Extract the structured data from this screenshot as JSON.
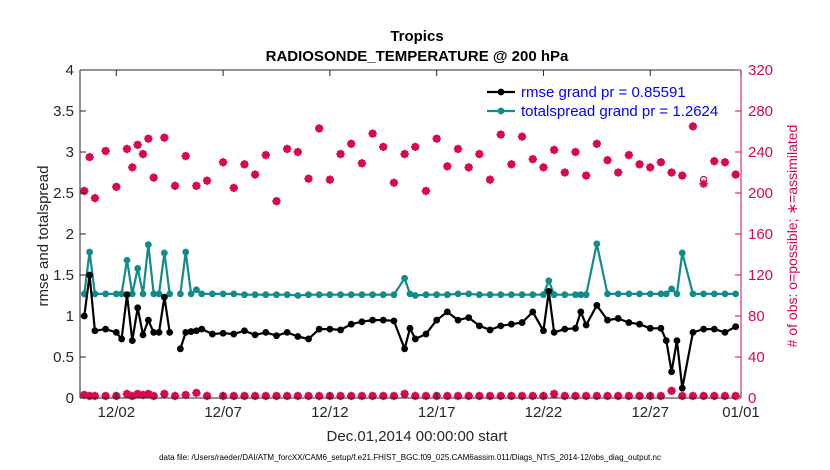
{
  "chart_data": {
    "type": "line",
    "title": "Tropics",
    "subtitle": "RADIOSONDE_TEMPERATURE @ 200 hPa",
    "xlabel": "Dec.01,2014 00:00:00 start",
    "ylabel": "rmse and totalspread",
    "ylabel_right": "# of obs: o=possible; ∗=assimilated",
    "footnote": "data file: /Users/raeder/DAI/ATM_forcXX/CAM6_setup/f.e21.FHIST_BGC.f09_025.CAM6assim.011/Diags_NTrS_2014-12/obs_diag_output.nc",
    "xlim": [
      0.3,
      31.25
    ],
    "ylim": [
      0,
      4
    ],
    "ylim_right": [
      0,
      320
    ],
    "x_ticks": [
      2,
      7,
      12,
      17,
      22,
      27,
      32
    ],
    "x_tick_labels": [
      "12/02",
      "12/07",
      "12/12",
      "12/17",
      "12/22",
      "12/27",
      "01/01"
    ],
    "y_ticks": [
      "0",
      "0.5",
      "1",
      "1.5",
      "2",
      "2.5",
      "3",
      "3.5",
      "4"
    ],
    "y_right_ticks": [
      "0",
      "40",
      "80",
      "120",
      "160",
      "200",
      "240",
      "280",
      "320"
    ],
    "legend_position": "top-right",
    "legend": [
      "rmse grand pr = 0.85591",
      "totalspread grand pr = 1.2624"
    ],
    "colors": {
      "rmse": "#000000",
      "spread": "#118b8b",
      "obs": "#d6084f",
      "axis": "#262626",
      "legend_text": "#0000ff"
    },
    "series": [
      {
        "name": "rmse",
        "x": [
          0.5,
          0.75,
          1,
          1.5,
          2,
          2.25,
          2.5,
          2.75,
          3,
          3.25,
          3.5,
          3.75,
          4,
          4.25,
          4.5,
          4.75,
          5,
          5.25,
          5.5,
          5.75,
          6,
          6.5,
          7,
          7.5,
          8,
          8.5,
          9,
          9.5,
          10,
          10.5,
          11,
          11.5,
          12,
          12.5,
          13,
          13.5,
          14,
          14.5,
          15,
          15.5,
          15.75,
          16,
          16.5,
          17,
          17.5,
          18,
          18.5,
          19,
          19.5,
          20,
          20.5,
          21,
          21.5,
          22,
          22.25,
          22.5,
          23,
          23.5,
          23.75,
          24,
          24.5,
          25,
          25.5,
          26,
          26.5,
          27,
          27.5,
          27.75,
          28,
          28.25,
          28.5,
          29,
          29.5,
          30,
          30.5,
          31
        ],
        "values": [
          1.0,
          1.5,
          0.82,
          0.84,
          0.8,
          0.72,
          1.26,
          0.7,
          1.1,
          0.77,
          0.95,
          0.8,
          0.8,
          1.23,
          0.8,
          null,
          0.6,
          0.8,
          0.81,
          0.82,
          0.84,
          0.78,
          0.79,
          0.78,
          0.82,
          0.77,
          0.8,
          0.76,
          0.8,
          0.75,
          0.72,
          0.84,
          0.84,
          0.83,
          0.9,
          0.93,
          0.95,
          0.95,
          0.94,
          0.6,
          0.85,
          0.72,
          0.78,
          0.95,
          1.05,
          0.95,
          0.98,
          0.88,
          0.83,
          0.88,
          0.9,
          0.92,
          1.05,
          0.82,
          1.3,
          0.8,
          0.84,
          0.85,
          1.05,
          0.89,
          1.13,
          0.95,
          0.97,
          0.92,
          0.9,
          0.85,
          0.85,
          0.7,
          0.32,
          0.7,
          0.12,
          0.8,
          0.84,
          0.84,
          0.8,
          0.87
        ]
      },
      {
        "name": "totalspread",
        "x": [
          0.5,
          0.75,
          1,
          1.5,
          2,
          2.25,
          2.5,
          2.75,
          3,
          3.25,
          3.5,
          3.75,
          4,
          4.25,
          4.5,
          4.75,
          5,
          5.25,
          5.5,
          5.75,
          6,
          6.5,
          7,
          7.5,
          8,
          8.5,
          9,
          9.5,
          10,
          10.5,
          11,
          11.5,
          12,
          12.5,
          13,
          13.5,
          14,
          14.5,
          15,
          15.5,
          15.75,
          16,
          16.5,
          17,
          17.5,
          18,
          18.5,
          19,
          19.5,
          20,
          20.5,
          21,
          21.5,
          22,
          22.25,
          22.5,
          23,
          23.5,
          23.75,
          24,
          24.5,
          25,
          25.5,
          26,
          26.5,
          27,
          27.5,
          27.75,
          28,
          28.25,
          28.5,
          29,
          29.5,
          30,
          30.5,
          31
        ],
        "values": [
          1.27,
          1.78,
          1.27,
          1.27,
          1.27,
          1.27,
          1.68,
          1.27,
          1.58,
          1.27,
          1.87,
          1.27,
          1.27,
          1.77,
          1.27,
          null,
          1.27,
          1.78,
          1.27,
          1.32,
          1.27,
          1.27,
          1.27,
          1.27,
          1.26,
          1.26,
          1.26,
          1.26,
          1.26,
          1.25,
          1.26,
          1.26,
          1.26,
          1.26,
          1.26,
          1.26,
          1.26,
          1.26,
          1.26,
          1.46,
          1.27,
          1.25,
          1.26,
          1.26,
          1.26,
          1.27,
          1.27,
          1.26,
          1.26,
          1.26,
          1.26,
          1.26,
          1.26,
          1.26,
          1.43,
          1.26,
          1.26,
          1.26,
          1.26,
          1.26,
          1.88,
          1.27,
          1.27,
          1.27,
          1.27,
          1.27,
          1.27,
          1.27,
          1.33,
          1.27,
          1.77,
          1.27,
          1.27,
          1.27,
          1.27,
          1.27
        ]
      },
      {
        "name": "obs_possible",
        "axis": "right",
        "x": [
          0.5,
          0.75,
          1,
          1.5,
          2,
          2.5,
          2.75,
          3,
          3.25,
          3.5,
          3.75,
          4.25,
          4.75,
          5.25,
          5.75,
          6.25,
          7,
          7.5,
          8,
          8.5,
          9,
          9.5,
          10,
          10.5,
          11,
          11.5,
          12,
          12.5,
          13,
          13.5,
          14,
          14.5,
          15,
          15.5,
          16,
          16.5,
          17,
          17.5,
          18,
          18.5,
          19,
          19.5,
          20,
          20.5,
          21,
          21.5,
          22,
          22.5,
          23,
          23.5,
          24,
          24.5,
          25,
          25.5,
          26,
          26.5,
          27,
          27.5,
          28,
          28.5,
          29,
          29.5,
          30,
          30.5,
          31
        ],
        "values": [
          202,
          235,
          195,
          241,
          206,
          243,
          225,
          247,
          238,
          253,
          215,
          254,
          207,
          236,
          207,
          212,
          230,
          205,
          228,
          218,
          237,
          192,
          243,
          240,
          214,
          263,
          213,
          238,
          248,
          229,
          258,
          245,
          210,
          238,
          245,
          202,
          253,
          226,
          243,
          225,
          238,
          213,
          257,
          228,
          255,
          233,
          225,
          242,
          220,
          240,
          217,
          248,
          232,
          220,
          237,
          228,
          225,
          230,
          220,
          217,
          265,
          213,
          231,
          230,
          218
        ],
        "assimilated_offset": [
          0,
          0,
          0,
          0,
          0,
          0,
          0,
          0,
          0,
          0,
          0,
          0,
          0,
          0,
          0,
          0,
          0,
          0,
          0,
          0,
          0,
          0,
          0,
          0,
          0,
          0,
          0,
          0,
          0,
          0,
          0,
          0,
          0,
          0,
          0,
          0,
          0,
          0,
          0,
          0,
          0,
          0,
          0,
          0,
          0,
          0,
          0,
          0,
          0,
          0,
          0,
          0,
          0,
          0,
          0,
          0,
          0,
          0,
          0,
          0,
          0,
          -4,
          0,
          0,
          0
        ]
      },
      {
        "name": "obs_assimilated_low",
        "axis": "right",
        "x": [
          0.5,
          0.75,
          1,
          1.5,
          2,
          2.5,
          2.75,
          3,
          3.25,
          3.5,
          3.75,
          4.25,
          4.75,
          5.25,
          5.75,
          6.25,
          7,
          7.5,
          8,
          8.5,
          9,
          9.5,
          10,
          10.5,
          11,
          11.5,
          12,
          12.5,
          13,
          13.5,
          14,
          14.5,
          15,
          15.5,
          16,
          16.5,
          17,
          17.5,
          18,
          18.5,
          19,
          19.5,
          20,
          20.5,
          21,
          21.5,
          22,
          22.5,
          23,
          23.5,
          24,
          24.5,
          25,
          25.5,
          26,
          26.5,
          27,
          27.5,
          28,
          28.5,
          29,
          29.5,
          30,
          30.5,
          31
        ],
        "values": [
          3,
          2,
          2,
          2,
          2,
          4,
          2,
          4,
          3,
          4,
          2,
          4,
          2,
          3,
          5,
          2,
          2,
          2,
          2,
          2,
          2,
          2,
          2,
          2,
          2,
          2,
          2,
          2,
          2,
          2,
          2,
          2,
          2,
          4,
          2,
          2,
          2,
          2,
          2,
          2,
          2,
          2,
          2,
          2,
          2,
          2,
          2,
          4,
          2,
          2,
          2,
          2,
          2,
          2,
          2,
          2,
          2,
          2,
          7,
          2,
          2,
          2,
          2,
          2,
          2
        ]
      }
    ]
  }
}
